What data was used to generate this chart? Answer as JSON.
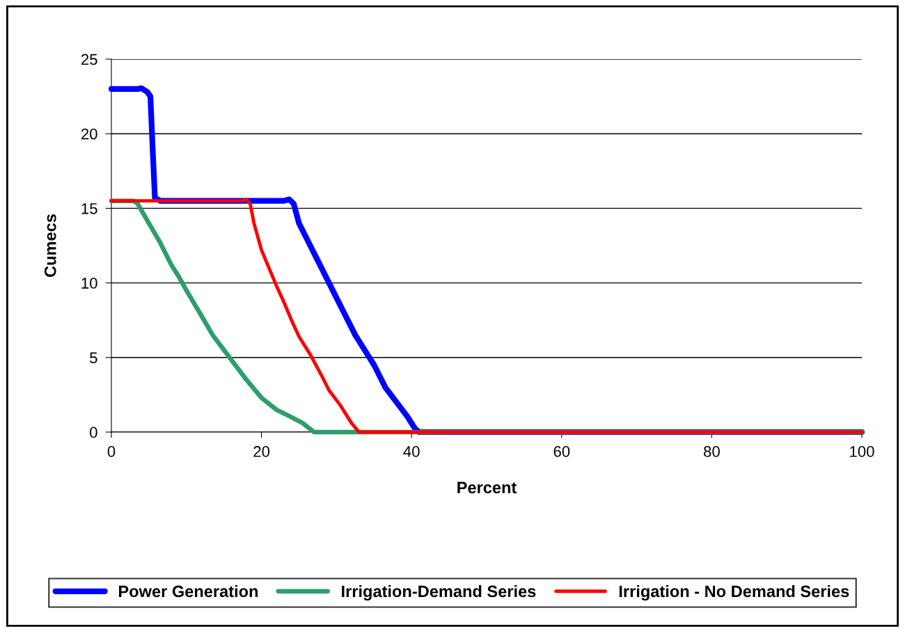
{
  "chart_data": {
    "type": "line",
    "xlabel": "Percent",
    "ylabel": "Cumecs",
    "xlim": [
      0,
      100
    ],
    "xticks": [
      0,
      20,
      40,
      60,
      80,
      100
    ],
    "ylim": [
      0,
      25
    ],
    "yticks": [
      0,
      5,
      10,
      15,
      20,
      25
    ],
    "grid": "y",
    "legend": "bottom",
    "marker": "none",
    "line_style": "solid",
    "series": [
      {
        "name": "Power Generation",
        "color": "#0000ff",
        "x": [
          0,
          3.5,
          4,
          4.8,
          5.2,
          5.5,
          5.8,
          6.5,
          23,
          23.7,
          24.3,
          25,
          26,
          27.5,
          29,
          31,
          32.5,
          34,
          35,
          36.5,
          38,
          39.5,
          40.5,
          41,
          100
        ],
        "values": [
          23,
          23,
          23.05,
          22.8,
          22.5,
          19,
          15.7,
          15.5,
          15.5,
          15.6,
          15.3,
          14,
          13,
          11.5,
          10,
          8,
          6.5,
          5.3,
          4.5,
          3,
          2,
          1,
          0.2,
          0,
          0
        ]
      },
      {
        "name": "Irrigation-Demand Series",
        "color": "#2e9e6a",
        "x": [
          0,
          3,
          3.5,
          5,
          6.5,
          8,
          9,
          10,
          12,
          13.5,
          15,
          16.5,
          18,
          20,
          22,
          24,
          25.5,
          26.5,
          27,
          100
        ],
        "values": [
          15.5,
          15.5,
          15.3,
          14,
          12.7,
          11.2,
          10.4,
          9.5,
          7.8,
          6.5,
          5.5,
          4.5,
          3.5,
          2.3,
          1.5,
          1,
          0.6,
          0.2,
          0,
          0
        ]
      },
      {
        "name": "Irrigation - No Demand Series",
        "color": "#ff0000",
        "x": [
          0,
          17.5,
          18,
          18.5,
          19,
          20,
          21,
          22,
          23,
          24,
          25,
          26.5,
          28,
          29,
          30.5,
          32,
          33,
          100
        ],
        "values": [
          15.5,
          15.5,
          15.6,
          15.3,
          14,
          12.2,
          11,
          9.8,
          8.7,
          7.5,
          6.4,
          5.2,
          3.8,
          2.8,
          1.8,
          0.6,
          0,
          0
        ]
      }
    ]
  }
}
